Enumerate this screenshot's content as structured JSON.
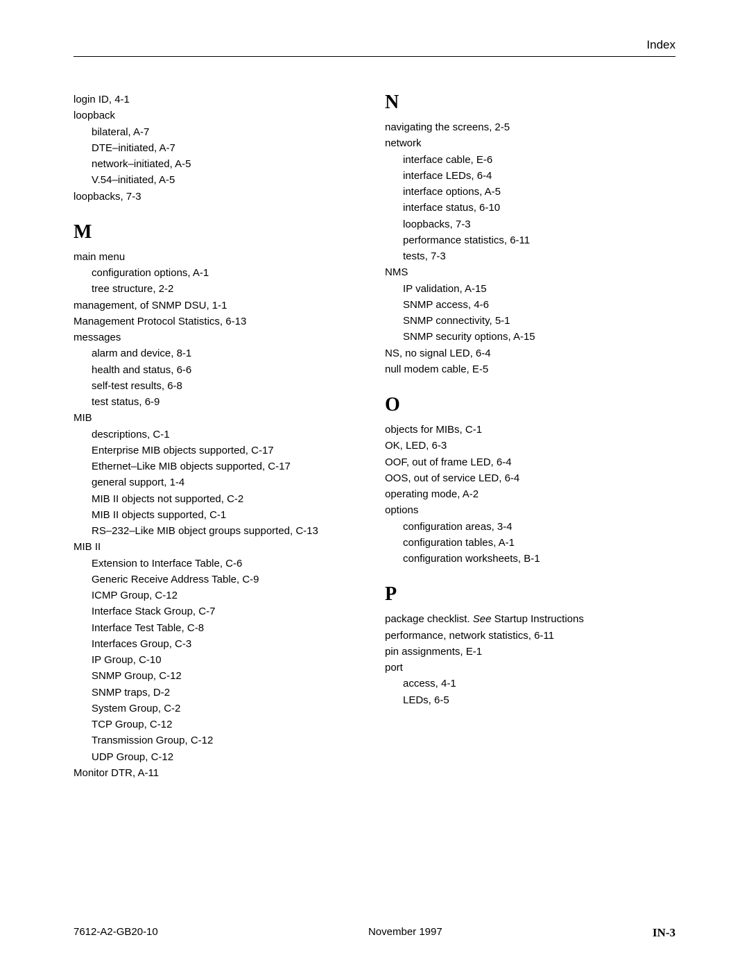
{
  "header": {
    "title": "Index"
  },
  "footer": {
    "left": "7612-A2-GB20-10",
    "center": "November 1997",
    "right": "IN-3"
  },
  "left": {
    "l01": "login ID,  4-1",
    "l02": "loopback",
    "l03": "bilateral,  A-7",
    "l04": "DTE–initiated,  A-7",
    "l05": "network–initiated,  A-5",
    "l06": "V.54–initiated,  A-5",
    "l07": "loopbacks,  7-3",
    "M": "M",
    "m01": "main menu",
    "m02": "configuration options,  A-1",
    "m03": "tree structure,  2-2",
    "m04": "management, of SNMP DSU,  1-1",
    "m05": "Management Protocol Statistics,  6-13",
    "m06": "messages",
    "m07": "alarm and device,  8-1",
    "m08": "health and status,  6-6",
    "m09": "self-test results,  6-8",
    "m10": "test status,  6-9",
    "m11": "MIB",
    "m12": "descriptions,  C-1",
    "m13": "Enterprise MIB objects supported,  C-17",
    "m14": "Ethernet–Like MIB objects supported,  C-17",
    "m15": "general support,  1-4",
    "m16": "MIB II objects not supported,  C-2",
    "m17": "MIB II objects supported,  C-1",
    "m18": "RS–232–Like MIB object groups supported,  C-13",
    "m19": "MIB II",
    "m20": "Extension to Interface Table,  C-6",
    "m21": "Generic Receive Address Table,  C-9",
    "m22": "ICMP Group,  C-12",
    "m23": "Interface Stack Group,  C-7",
    "m24": "Interface Test Table,  C-8",
    "m25": "Interfaces Group,  C-3",
    "m26": "IP Group,  C-10",
    "m27": "SNMP Group,  C-12",
    "m28": "SNMP traps,  D-2",
    "m29": "System Group,  C-2",
    "m30": "TCP Group,  C-12",
    "m31": "Transmission Group,  C-12",
    "m32": "UDP Group,  C-12",
    "m33": "Monitor DTR,  A-11"
  },
  "right": {
    "N": "N",
    "n01": "navigating the screens,  2-5",
    "n02": "network",
    "n03": "interface cable,  E-6",
    "n04": "interface LEDs,  6-4",
    "n05": "interface options,  A-5",
    "n06": "interface status,  6-10",
    "n07": "loopbacks,  7-3",
    "n08": "performance statistics,  6-11",
    "n09": "tests,  7-3",
    "n10": "NMS",
    "n11": "IP validation,  A-15",
    "n12": "SNMP access,  4-6",
    "n13": "SNMP connectivity,  5-1",
    "n14": "SNMP security options,  A-15",
    "n15": "NS, no signal LED,  6-4",
    "n16": "null modem cable,  E-5",
    "O": "O",
    "o01": "objects for MIBs,  C-1",
    "o02": "OK, LED,  6-3",
    "o03": "OOF, out of frame LED,  6-4",
    "o04": "OOS, out of service LED,  6-4",
    "o05": "operating mode,  A-2",
    "o06": "options",
    "o07": "configuration areas,  3-4",
    "o08": "configuration tables,  A-1",
    "o09": "configuration worksheets,  B-1",
    "P": "P",
    "p01a": "package checklist. ",
    "p01b": "See",
    "p01c": " Startup Instructions",
    "p02": "performance, network statistics,  6-11",
    "p03": "pin assignments,  E-1",
    "p04": "port",
    "p05": "access,  4-1",
    "p06": "LEDs,  6-5"
  }
}
